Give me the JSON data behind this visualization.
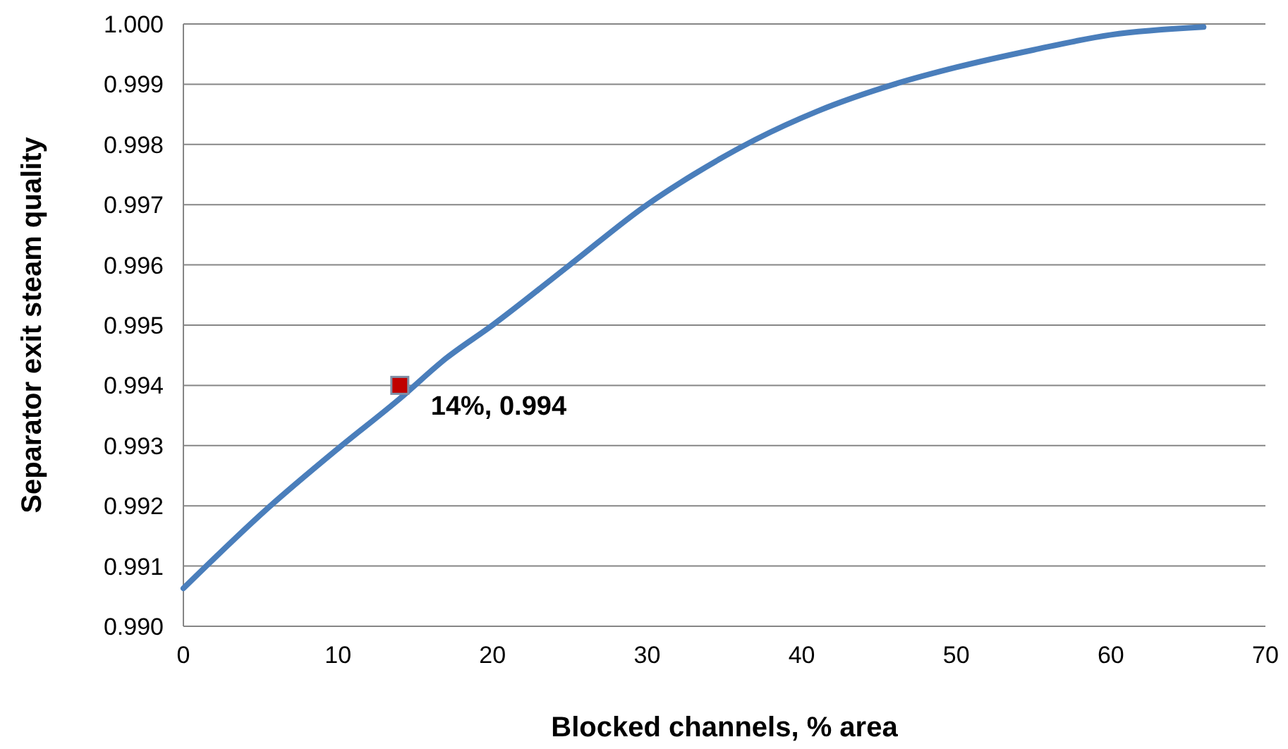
{
  "chart_data": {
    "type": "line",
    "xlabel": "Blocked channels, % area",
    "ylabel": "Separator exit  steam quality",
    "xlim": [
      0,
      70
    ],
    "xticks": [
      0,
      10,
      20,
      30,
      40,
      50,
      60,
      70
    ],
    "ylim": [
      0.99,
      1.0
    ],
    "yticks": [
      {
        "value": 0.99,
        "label": "0.990"
      },
      {
        "value": 0.991,
        "label": "0.991"
      },
      {
        "value": 0.992,
        "label": "0.992"
      },
      {
        "value": 0.993,
        "label": "0.993"
      },
      {
        "value": 0.994,
        "label": "0.994"
      },
      {
        "value": 0.995,
        "label": "0.995"
      },
      {
        "value": 0.996,
        "label": "0.996"
      },
      {
        "value": 0.997,
        "label": "0.997"
      },
      {
        "value": 0.998,
        "label": "0.998"
      },
      {
        "value": 0.999,
        "label": "0.999"
      },
      {
        "value": 1.0,
        "label": "1.000"
      }
    ],
    "grid": "y",
    "series": [
      {
        "color": "#4a7ebb",
        "marker": "none",
        "x": [
          0,
          5.5,
          10,
          14,
          17,
          20,
          25,
          30,
          33,
          37,
          41,
          46,
          50,
          55,
          60,
          66
        ],
        "values": [
          0.99063,
          0.99197,
          0.99295,
          0.99378,
          0.99445,
          0.995,
          0.996,
          0.997,
          0.9975,
          0.99808,
          0.99855,
          0.999,
          0.99928,
          0.99957,
          0.99982,
          0.99995
        ]
      },
      {
        "type": "scatter",
        "color": "#c00000",
        "marker": "square",
        "x": [
          14
        ],
        "values": [
          0.994
        ]
      }
    ],
    "annotations": [
      {
        "text": "14%, 0.994",
        "x": 14,
        "y": 0.994
      }
    ]
  }
}
